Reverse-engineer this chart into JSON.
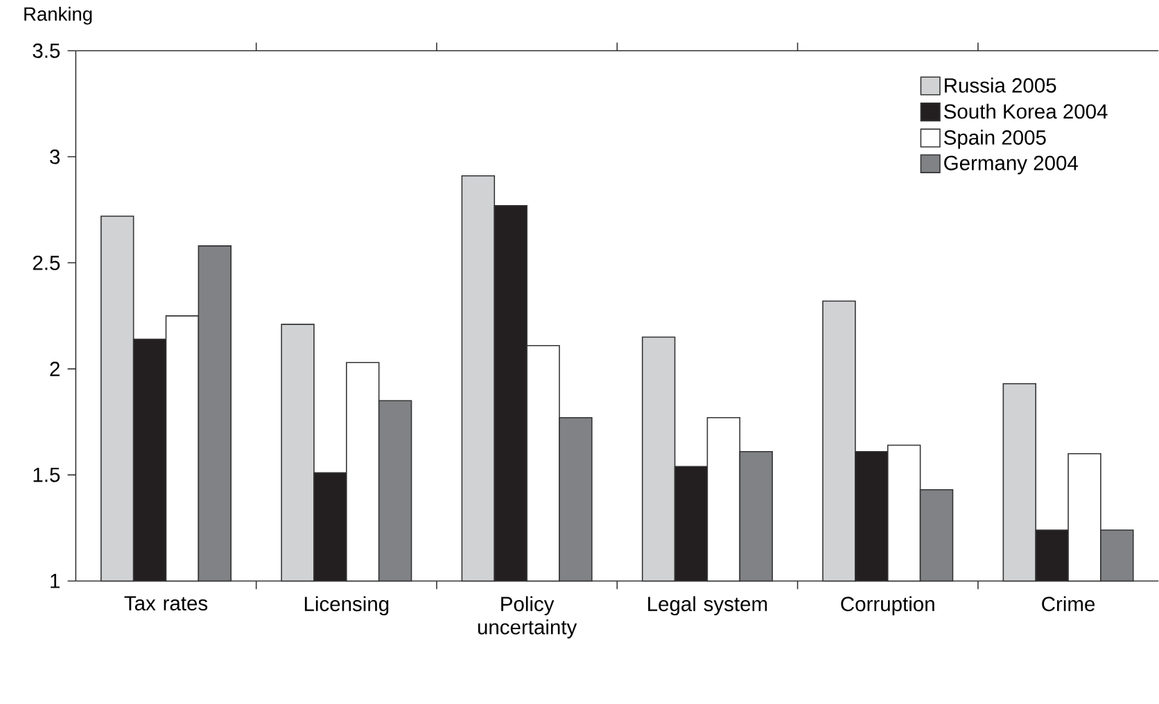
{
  "chart_data": {
    "type": "bar",
    "ylabel": "Ranking",
    "categories": [
      "Tax rates",
      "Licensing",
      "Policy uncertainty",
      "Legal system",
      "Corruption",
      "Crime"
    ],
    "series": [
      {
        "name": "Russia 2005",
        "color": "#d1d2d4",
        "values": [
          2.72,
          2.21,
          2.91,
          2.15,
          2.32,
          1.93
        ]
      },
      {
        "name": "South Korea 2004",
        "color": "#231f20",
        "values": [
          2.14,
          1.51,
          2.77,
          1.54,
          1.61,
          1.24
        ]
      },
      {
        "name": "Spain 2005",
        "color": "#ffffff",
        "values": [
          2.25,
          2.03,
          2.11,
          1.77,
          1.64,
          1.6
        ]
      },
      {
        "name": "Germany 2004",
        "color": "#808285",
        "values": [
          2.58,
          1.85,
          1.77,
          1.61,
          1.43,
          1.24
        ]
      }
    ],
    "ylim": [
      1,
      3.5
    ],
    "yticks": [
      1,
      1.5,
      2,
      2.5,
      3,
      3.5
    ],
    "grid": false,
    "legend": "top right"
  }
}
